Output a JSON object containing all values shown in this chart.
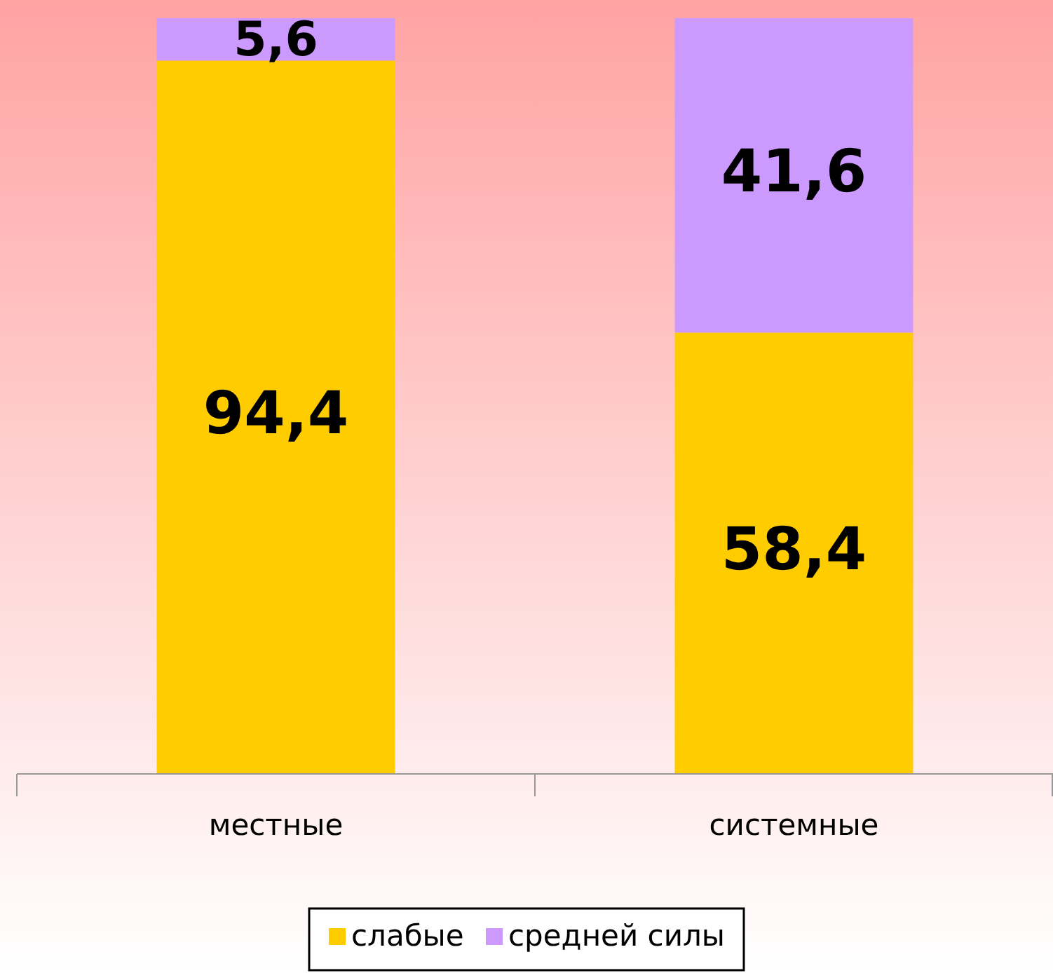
{
  "chart_data": {
    "type": "bar",
    "stacked": true,
    "categories": [
      "местные",
      "системные"
    ],
    "series": [
      {
        "name": "слабые",
        "color": "#ffcc00",
        "values": [
          94.4,
          58.4
        ],
        "value_labels": [
          "94,4",
          "58,4"
        ]
      },
      {
        "name": "средней силы",
        "color": "#cc99ff",
        "values": [
          5.6,
          41.6
        ],
        "value_labels": [
          "5,6",
          "41,6"
        ]
      }
    ],
    "legend": "bottom"
  }
}
